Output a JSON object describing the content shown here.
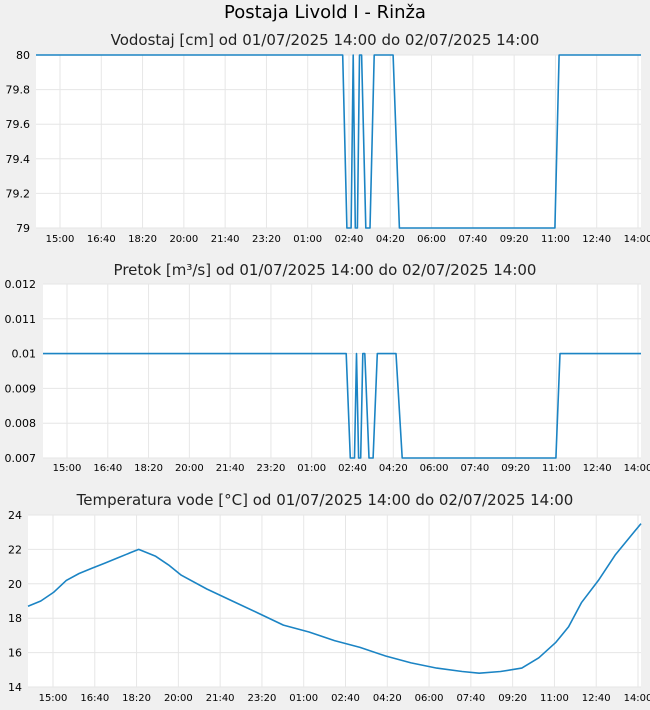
{
  "page": {
    "title": "Postaja Livold I - Rinža"
  },
  "colors": {
    "line": "#1b84c4",
    "plot_bg": "#ffffff",
    "grid": "#e6e6e6",
    "page_bg": "#f0f0f0"
  },
  "chart_data": [
    {
      "type": "line",
      "title": "Vodostaj [cm] od 01/07/2025 14:00 do 02/07/2025 14:00",
      "ylim": [
        79,
        80
      ],
      "yticks": [
        "80",
        "79.8",
        "79.6",
        "79.4",
        "79.2",
        "79"
      ],
      "ytick_values": [
        80,
        79.8,
        79.6,
        79.4,
        79.2,
        79
      ],
      "xticks": [
        "15:00",
        "16:40",
        "18:20",
        "20:00",
        "21:40",
        "23:20",
        "01:00",
        "02:40",
        "04:20",
        "06:00",
        "07:40",
        "09:20",
        "11:00",
        "12:40",
        "14:00"
      ],
      "grid": true,
      "x": [
        "14:00",
        "02:10",
        "02:20",
        "02:30",
        "02:35",
        "02:40",
        "02:45",
        "02:50",
        "02:55",
        "03:05",
        "03:15",
        "03:25",
        "03:30",
        "04:00",
        "04:10",
        "04:25",
        "10:35",
        "10:45",
        "14:00"
      ],
      "values": [
        80,
        80,
        79,
        79,
        80,
        79,
        79,
        80,
        80,
        79,
        79,
        80,
        80,
        80,
        80,
        79,
        79,
        80,
        80
      ]
    },
    {
      "type": "line",
      "title": "Pretok [m³/s] od 01/07/2025 14:00 do 02/07/2025 14:00",
      "ylim": [
        0.007,
        0.012
      ],
      "yticks": [
        "0.012",
        "0.011",
        "0.01",
        "0.009",
        "0.008",
        "0.007"
      ],
      "ytick_values": [
        0.012,
        0.011,
        0.01,
        0.009,
        0.008,
        0.007
      ],
      "xticks": [
        "15:00",
        "16:40",
        "18:20",
        "20:00",
        "21:40",
        "23:20",
        "01:00",
        "02:40",
        "04:20",
        "06:00",
        "07:40",
        "09:20",
        "11:00",
        "12:40",
        "14:00"
      ],
      "grid": true,
      "x": [
        "14:00",
        "02:10",
        "02:20",
        "02:30",
        "02:35",
        "02:40",
        "02:45",
        "02:50",
        "02:55",
        "03:05",
        "03:15",
        "03:25",
        "03:30",
        "04:00",
        "04:10",
        "04:25",
        "10:35",
        "10:45",
        "14:00"
      ],
      "values": [
        0.01,
        0.01,
        0.007,
        0.007,
        0.01,
        0.007,
        0.007,
        0.01,
        0.01,
        0.007,
        0.007,
        0.01,
        0.01,
        0.01,
        0.01,
        0.007,
        0.007,
        0.01,
        0.01
      ]
    },
    {
      "type": "line",
      "title": "Temperatura vode [°C] od 01/07/2025 14:00 do 02/07/2025 14:00",
      "ylim": [
        14,
        24
      ],
      "yticks": [
        "24",
        "22",
        "20",
        "18",
        "16",
        "14"
      ],
      "ytick_values": [
        24,
        22,
        20,
        18,
        16,
        14
      ],
      "xticks": [
        "15:00",
        "16:40",
        "18:20",
        "20:00",
        "21:40",
        "23:20",
        "01:00",
        "02:40",
        "04:20",
        "06:00",
        "07:40",
        "09:20",
        "11:00",
        "12:40",
        "14:00"
      ],
      "grid": true,
      "x": [
        "14:00",
        "14:30",
        "15:00",
        "15:30",
        "16:00",
        "16:30",
        "17:00",
        "17:30",
        "18:00",
        "18:20",
        "19:00",
        "19:30",
        "20:00",
        "21:00",
        "22:00",
        "23:00",
        "00:00",
        "01:00",
        "02:00",
        "03:00",
        "04:00",
        "05:00",
        "06:00",
        "07:00",
        "07:40",
        "08:30",
        "09:20",
        "10:00",
        "10:40",
        "11:10",
        "11:40",
        "12:20",
        "13:00",
        "13:30",
        "14:00"
      ],
      "values": [
        18.7,
        19.0,
        19.5,
        20.2,
        20.6,
        20.9,
        21.2,
        21.5,
        21.8,
        22.0,
        21.6,
        21.1,
        20.5,
        19.7,
        19.0,
        18.3,
        17.6,
        17.2,
        16.7,
        16.3,
        15.8,
        15.4,
        15.1,
        14.9,
        14.8,
        14.9,
        15.1,
        15.7,
        16.6,
        17.5,
        18.9,
        20.2,
        21.7,
        22.6,
        23.5
      ]
    }
  ]
}
